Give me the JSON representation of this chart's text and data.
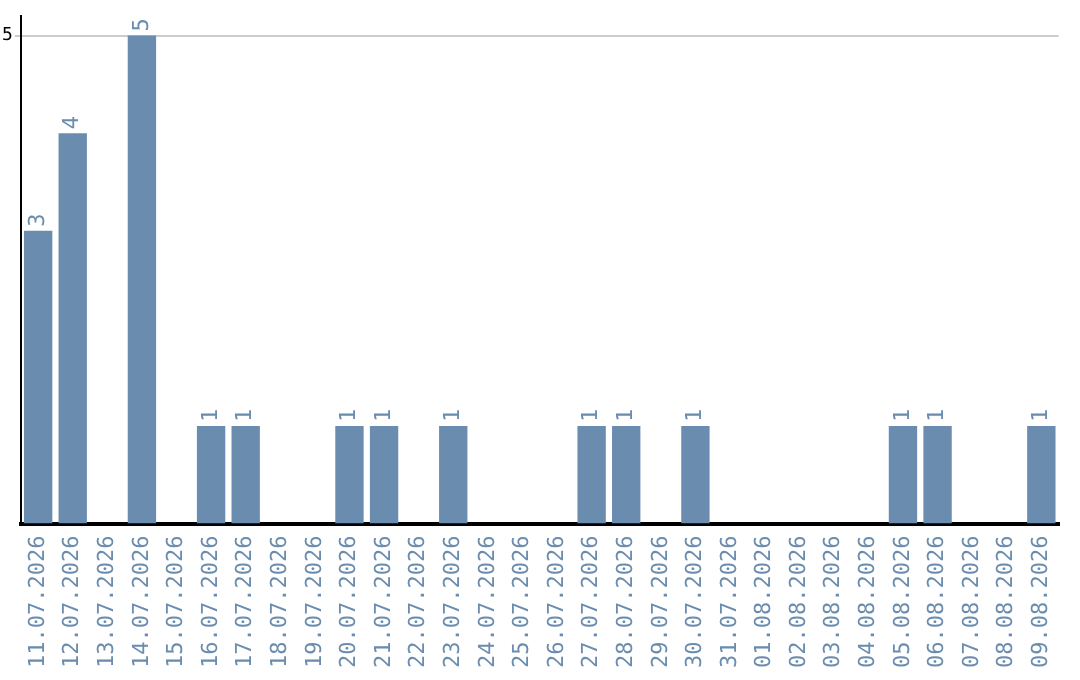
{
  "chart_data": {
    "type": "bar",
    "categories": [
      "11.07.2026",
      "12.07.2026",
      "13.07.2026",
      "14.07.2026",
      "15.07.2026",
      "16.07.2026",
      "17.07.2026",
      "18.07.2026",
      "19.07.2026",
      "20.07.2026",
      "21.07.2026",
      "22.07.2026",
      "23.07.2026",
      "24.07.2026",
      "25.07.2026",
      "26.07.2026",
      "27.07.2026",
      "28.07.2026",
      "29.07.2026",
      "30.07.2026",
      "31.07.2026",
      "01.08.2026",
      "02.08.2026",
      "03.08.2026",
      "04.08.2026",
      "05.08.2026",
      "06.08.2026",
      "07.08.2026",
      "08.08.2026",
      "09.08.2026"
    ],
    "values": [
      3,
      4,
      0,
      5,
      0,
      1,
      1,
      0,
      0,
      1,
      1,
      0,
      1,
      0,
      0,
      0,
      1,
      1,
      0,
      1,
      0,
      0,
      0,
      0,
      0,
      1,
      1,
      0,
      0,
      1
    ],
    "value_labels": [
      "3",
      "4",
      null,
      "5",
      null,
      "1",
      "1",
      null,
      null,
      "1",
      "1",
      null,
      "1",
      null,
      null,
      null,
      "1",
      "1",
      null,
      "1",
      null,
      null,
      null,
      null,
      null,
      "1",
      "1",
      null,
      null,
      "1"
    ],
    "color": "#6a8caf",
    "ylim": [
      0,
      5.2
    ],
    "yticks": [
      5
    ],
    "grid": "y",
    "legend": false
  }
}
